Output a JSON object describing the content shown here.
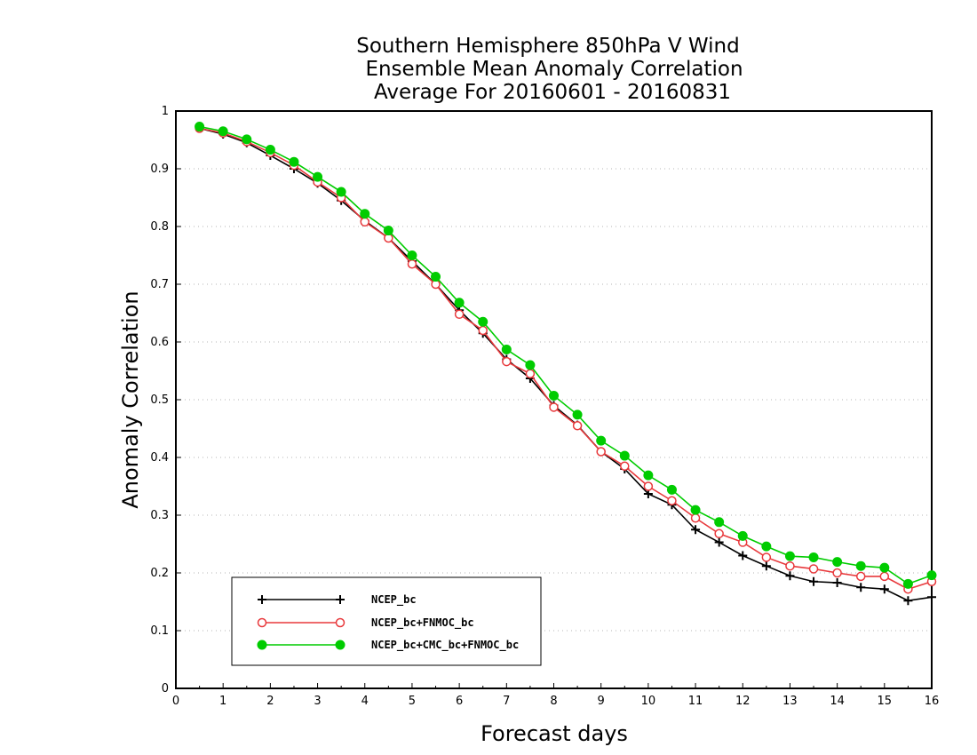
{
  "chart_data": {
    "type": "line",
    "title_lines": [
      "Southern Hemisphere 850hPa V Wind",
      "Ensemble Mean Anomaly Correlation",
      "Average For 20160601 - 20160831"
    ],
    "xlabel": "Forecast days",
    "ylabel": "Anomaly Correlation",
    "xlim": [
      0,
      16
    ],
    "ylim": [
      0,
      1
    ],
    "x_ticks": [
      0,
      1,
      2,
      3,
      4,
      5,
      6,
      7,
      8,
      9,
      10,
      11,
      12,
      13,
      14,
      15,
      16
    ],
    "y_ticks": [
      "0",
      "0.1",
      "0.2",
      "0.3",
      "0.4",
      "0.5",
      "0.6",
      "0.7",
      "0.8",
      "0.9",
      "1"
    ],
    "grid": "horizontal dotted",
    "legend_position": "bottom-left",
    "x": [
      0.5,
      1,
      1.5,
      2,
      2.5,
      3,
      3.5,
      4,
      4.5,
      5,
      5.5,
      6,
      6.5,
      7,
      7.5,
      8,
      8.5,
      9,
      9.5,
      10,
      10.5,
      11,
      11.5,
      12,
      12.5,
      13,
      13.5,
      14,
      14.5,
      15,
      15.5,
      16
    ],
    "series": [
      {
        "name": "NCEP_bc",
        "color": "#000000",
        "marker": "plus",
        "values": [
          0.97,
          0.96,
          0.945,
          0.923,
          0.9,
          0.875,
          0.845,
          0.81,
          0.78,
          0.74,
          0.7,
          0.655,
          0.615,
          0.57,
          0.537,
          0.49,
          0.456,
          0.41,
          0.38,
          0.337,
          0.318,
          0.275,
          0.253,
          0.23,
          0.212,
          0.195,
          0.185,
          0.183,
          0.175,
          0.172,
          0.152,
          0.158
        ]
      },
      {
        "name": "NCEP_bc+FNMOC_bc",
        "color": "#e8393c",
        "marker": "open-circle",
        "values": [
          0.97,
          0.962,
          0.947,
          0.928,
          0.906,
          0.877,
          0.85,
          0.808,
          0.78,
          0.735,
          0.7,
          0.648,
          0.62,
          0.566,
          0.545,
          0.487,
          0.455,
          0.41,
          0.385,
          0.35,
          0.325,
          0.295,
          0.268,
          0.253,
          0.227,
          0.212,
          0.207,
          0.2,
          0.194,
          0.194,
          0.172,
          0.185
        ]
      },
      {
        "name": "NCEP_bc+CMC_bc+FNMOC_bc",
        "color": "#00cc00",
        "marker": "filled-circle",
        "values": [
          0.973,
          0.965,
          0.951,
          0.933,
          0.912,
          0.886,
          0.86,
          0.822,
          0.793,
          0.75,
          0.713,
          0.668,
          0.635,
          0.587,
          0.56,
          0.507,
          0.474,
          0.429,
          0.403,
          0.369,
          0.344,
          0.309,
          0.288,
          0.264,
          0.246,
          0.229,
          0.227,
          0.219,
          0.212,
          0.209,
          0.181,
          0.196
        ]
      }
    ]
  }
}
